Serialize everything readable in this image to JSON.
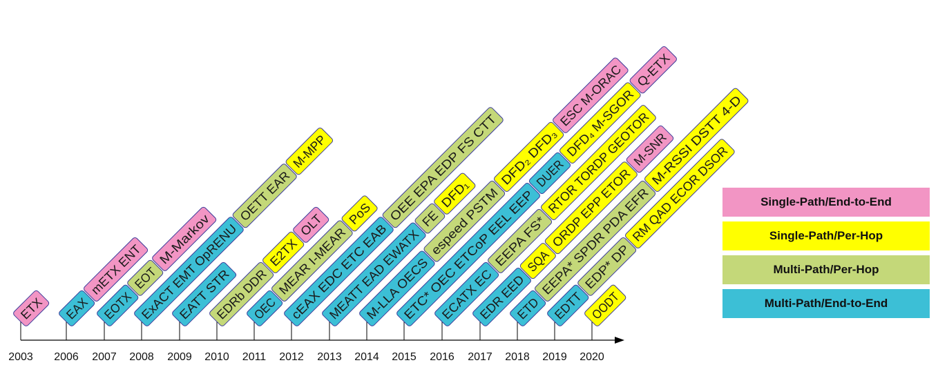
{
  "colors": {
    "single_path_end_to_end": "#f295c4",
    "single_path_per_hop": "#ffff00",
    "multi_path_per_hop": "#c4d879",
    "multi_path_end_to_end": "#3cbfd6"
  },
  "years": [
    "2003",
    "2006",
    "2007",
    "2008",
    "2009",
    "2010",
    "2011",
    "2012",
    "2013",
    "2014",
    "2015",
    "2016",
    "2017",
    "2018",
    "2019",
    "2020"
  ],
  "columns": [
    {
      "year": "2003",
      "segments": [
        {
          "text": "ETX",
          "cat": "single_path_end_to_end"
        }
      ]
    },
    {
      "year": "2006",
      "segments": [
        {
          "text": "EAX",
          "cat": "multi_path_end_to_end"
        },
        {
          "text": "mETX ENT",
          "cat": "single_path_end_to_end"
        }
      ]
    },
    {
      "year": "2007",
      "segments": [
        {
          "text": "EOTX",
          "cat": "multi_path_end_to_end"
        },
        {
          "text": "EOT",
          "cat": "multi_path_per_hop"
        },
        {
          "text": "M-Markov",
          "cat": "single_path_end_to_end"
        }
      ]
    },
    {
      "year": "2008",
      "segments": [
        {
          "text": "ExACT EMT OpRENU",
          "cat": "multi_path_end_to_end"
        },
        {
          "text": "OETT EAR",
          "cat": "multi_path_per_hop"
        },
        {
          "text": "M-MPP",
          "cat": "single_path_per_hop"
        }
      ]
    },
    {
      "year": "2009",
      "segments": [
        {
          "text": "EATT STR",
          "cat": "multi_path_end_to_end"
        }
      ]
    },
    {
      "year": "2010",
      "segments": [
        {
          "text": "EDRb DDR",
          "cat": "multi_path_per_hop"
        },
        {
          "text": "E2TX",
          "cat": "single_path_per_hop"
        },
        {
          "text": "OLT",
          "cat": "single_path_end_to_end"
        }
      ]
    },
    {
      "year": "2011",
      "segments": [
        {
          "text": "OEC",
          "cat": "multi_path_end_to_end"
        },
        {
          "text": "MEAR I-MEAR",
          "cat": "multi_path_per_hop"
        },
        {
          "text": "PoS",
          "cat": "single_path_per_hop"
        }
      ]
    },
    {
      "year": "2012",
      "segments": [
        {
          "text": "cEAX EDC ETC EAB",
          "cat": "multi_path_end_to_end"
        },
        {
          "text": "OEE EPA EDP FS CTT",
          "cat": "multi_path_per_hop"
        }
      ]
    },
    {
      "year": "2013",
      "segments": [
        {
          "text": "MEATT EAD EWATX",
          "cat": "multi_path_end_to_end"
        },
        {
          "text": "FE",
          "cat": "multi_path_per_hop"
        },
        {
          "text": "DFD₁",
          "cat": "single_path_per_hop"
        }
      ]
    },
    {
      "year": "2014",
      "segments": [
        {
          "text": "M-LLA OECS",
          "cat": "multi_path_end_to_end"
        },
        {
          "text": "espeed PSTM",
          "cat": "multi_path_per_hop"
        },
        {
          "text": "DFD₂ DFD₃",
          "cat": "single_path_per_hop"
        },
        {
          "text": "ESC M-ORAC",
          "cat": "single_path_end_to_end"
        }
      ]
    },
    {
      "year": "2015",
      "segments": [
        {
          "text": "ETC* OEC ETCoP EEL EEP",
          "cat": "multi_path_end_to_end"
        },
        {
          "text": "DUER",
          "cat": "multi_path_end_to_end"
        },
        {
          "text": "DFD₄ M-SGOR",
          "cat": "single_path_per_hop"
        },
        {
          "text": "Q-ETX",
          "cat": "single_path_end_to_end"
        }
      ]
    },
    {
      "year": "2016",
      "segments": [
        {
          "text": "ECATX EC",
          "cat": "multi_path_end_to_end"
        },
        {
          "text": "EEPA FS*",
          "cat": "multi_path_per_hop"
        },
        {
          "text": "RTOR TORDP GEOTOR",
          "cat": "single_path_per_hop"
        }
      ]
    },
    {
      "year": "2017",
      "segments": [
        {
          "text": "EDR EED",
          "cat": "multi_path_end_to_end"
        },
        {
          "text": "SQA",
          "cat": "single_path_per_hop"
        },
        {
          "text": "ORDP EPP ETOR",
          "cat": "single_path_per_hop"
        },
        {
          "text": "M-SNR",
          "cat": "single_path_end_to_end"
        }
      ]
    },
    {
      "year": "2018",
      "segments": [
        {
          "text": "ETD",
          "cat": "multi_path_end_to_end"
        },
        {
          "text": "EEPA* SPDR PDA EFR",
          "cat": "multi_path_per_hop"
        },
        {
          "text": "M-RSSI DSTT 4-D",
          "cat": "single_path_per_hop"
        }
      ]
    },
    {
      "year": "2019",
      "segments": [
        {
          "text": "EDTT",
          "cat": "multi_path_end_to_end"
        },
        {
          "text": "EDP* DP",
          "cat": "multi_path_per_hop"
        },
        {
          "text": "RM QAD ECOR DSOR",
          "cat": "single_path_per_hop"
        }
      ]
    },
    {
      "year": "2020",
      "segments": [
        {
          "text": "OODT",
          "cat": "single_path_per_hop"
        }
      ]
    }
  ],
  "legend": [
    {
      "label": "Single-Path/End-to-End",
      "cat": "single_path_end_to_end"
    },
    {
      "label": "Single-Path/Per-Hop",
      "cat": "single_path_per_hop"
    },
    {
      "label": "Multi-Path/Per-Hop",
      "cat": "multi_path_per_hop"
    },
    {
      "label": "Multi-Path/End-to-End",
      "cat": "multi_path_end_to_end"
    }
  ]
}
